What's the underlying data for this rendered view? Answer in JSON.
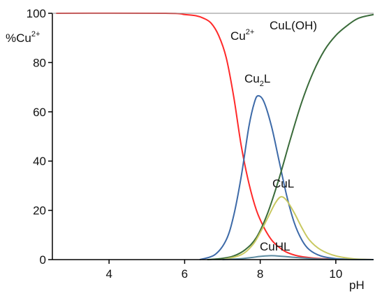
{
  "chart_data": {
    "type": "line",
    "xlabel": "pH",
    "ylabel": {
      "base": "%Cu",
      "sup": "2+"
    },
    "xlim": [
      2.5,
      11
    ],
    "ylim": [
      0,
      100
    ],
    "xticks": [
      4,
      6,
      8,
      10
    ],
    "yticks": [
      0,
      20,
      40,
      60,
      80,
      100
    ],
    "grid": false,
    "legend": "none",
    "series": [
      {
        "name": "Cu2+",
        "color": "#ff2a2a",
        "x": [
          2.6,
          5.5,
          6.0,
          6.3,
          6.5,
          6.7,
          6.9,
          7.1,
          7.3,
          7.5,
          7.7,
          7.9,
          8.1,
          8.3,
          8.5,
          8.7,
          9.0,
          9.5,
          10.0,
          11.0
        ],
        "y": [
          100,
          100,
          99.5,
          99,
          98,
          96,
          91,
          82,
          66,
          46,
          31,
          20,
          13,
          8,
          5,
          3,
          1.5,
          0.5,
          0.2,
          0
        ]
      },
      {
        "name": "Cu2L",
        "color": "#3d6aa8",
        "x": [
          6.4,
          6.8,
          7.1,
          7.3,
          7.5,
          7.7,
          7.85,
          7.95,
          8.1,
          8.3,
          8.5,
          8.7,
          8.9,
          9.1,
          9.3,
          9.6,
          10.0,
          10.5,
          11.0
        ],
        "y": [
          0,
          2,
          8,
          18,
          34,
          54,
          64,
          66.5,
          64,
          54,
          40,
          26,
          15,
          8,
          4,
          1.5,
          0.4,
          0.1,
          0
        ]
      },
      {
        "name": "CuL(OH)",
        "color": "#3a6b3a",
        "x": [
          6.6,
          7.0,
          7.3,
          7.6,
          7.9,
          8.2,
          8.5,
          8.8,
          9.1,
          9.4,
          9.7,
          10.0,
          10.3,
          10.6,
          11.0
        ],
        "y": [
          0,
          0.5,
          1.5,
          4,
          9,
          19,
          33,
          49,
          64,
          76,
          85,
          91,
          95,
          98,
          99.5
        ]
      },
      {
        "name": "CuL",
        "color": "#c8c860",
        "x": [
          7.0,
          7.5,
          7.8,
          8.0,
          8.2,
          8.4,
          8.55,
          8.7,
          8.9,
          9.1,
          9.3,
          9.6,
          10.0,
          10.5,
          11.0
        ],
        "y": [
          0,
          2,
          6,
          11,
          17,
          23,
          25.5,
          24,
          19,
          13,
          8,
          4,
          1.5,
          0.3,
          0
        ]
      },
      {
        "name": "CuHL",
        "color": "#5b8aa0",
        "x": [
          7.0,
          7.5,
          7.8,
          8.0,
          8.3,
          8.6,
          9.0,
          9.5,
          10.0,
          11.0
        ],
        "y": [
          0,
          0.4,
          0.9,
          1.3,
          1.6,
          1.3,
          0.8,
          0.3,
          0.1,
          0
        ]
      }
    ],
    "curve_labels": {
      "cu2": {
        "base": "Cu",
        "sup": "2+"
      },
      "cu2l": {
        "base": "Cu",
        "sub": "2",
        "tail": "L"
      },
      "culoh": "CuL(OH)",
      "cul": "CuL",
      "cuhl": "CuHL"
    }
  }
}
